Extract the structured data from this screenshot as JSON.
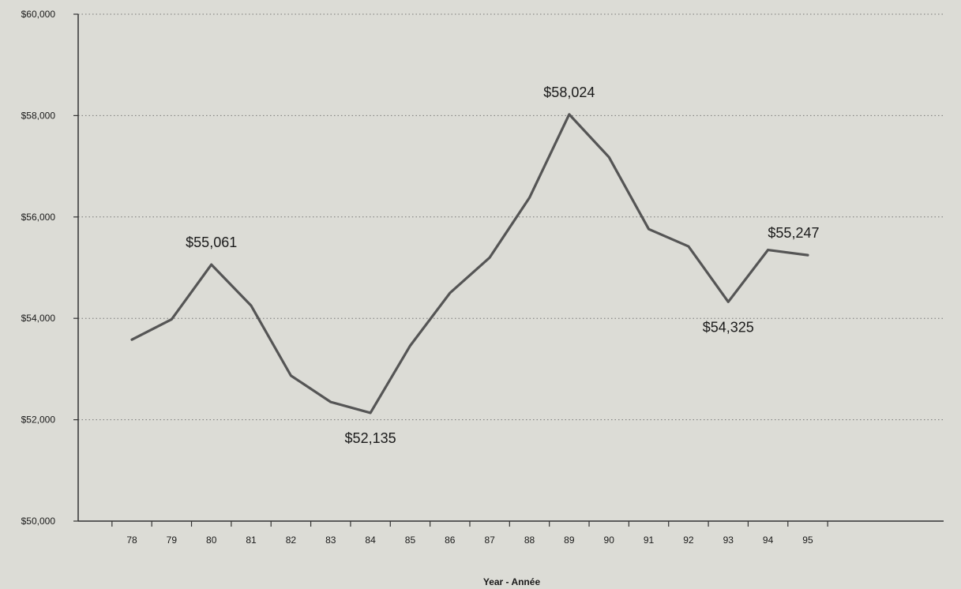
{
  "chart_data": {
    "type": "line",
    "title": "",
    "xlabel": "Year - Année",
    "ylabel": "",
    "ylim": [
      50000,
      60000
    ],
    "y_ticks": [
      50000,
      52000,
      54000,
      56000,
      58000,
      60000
    ],
    "y_tick_labels": [
      "$50,000",
      "$52,000",
      "$54,000",
      "$56,000",
      "$58,000",
      "$60,000"
    ],
    "grid": "horizontal dotted",
    "categories": [
      "78",
      "79",
      "80",
      "81",
      "82",
      "83",
      "84",
      "85",
      "86",
      "87",
      "88",
      "89",
      "90",
      "91",
      "92",
      "93",
      "94",
      "95"
    ],
    "series": [
      {
        "name": "",
        "values": [
          53580,
          53980,
          55061,
          54250,
          52870,
          52350,
          52135,
          53460,
          54500,
          55200,
          56380,
          58024,
          57180,
          55760,
          55420,
          54325,
          55350,
          55247
        ]
      }
    ],
    "annotations": [
      {
        "index": 2,
        "text": "$55,061",
        "position": "above"
      },
      {
        "index": 6,
        "text": "$52,135",
        "position": "below"
      },
      {
        "index": 11,
        "text": "$58,024",
        "position": "above"
      },
      {
        "index": 15,
        "text": "$54,325",
        "position": "below"
      },
      {
        "index": 17,
        "text": "$55,247",
        "position": "above"
      }
    ],
    "colors": {
      "line": "#555555",
      "background": "#dcdcd6",
      "axis": "#333333",
      "grid": "#777777"
    }
  }
}
